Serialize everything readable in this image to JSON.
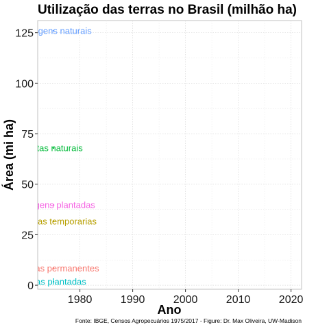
{
  "chart_data": {
    "type": "line",
    "title": "Utilização das terras no Brasil (milhão ha)",
    "xlabel": "Ano",
    "ylabel": "Área (mi ha)",
    "caption": "Fonte: IBGE, Censos Agropecuários 1975/2017 - Figure: Dr. Max Oliveira, UW-Madison",
    "xlim": [
      1972,
      2022
    ],
    "ylim": [
      -2,
      131
    ],
    "xticks": [
      1980,
      1990,
      2000,
      2010,
      2020
    ],
    "yticks": [
      0,
      25,
      50,
      75,
      100,
      125
    ],
    "grid": true,
    "legend": "none",
    "series": [
      {
        "label": "Pastagens naturais",
        "color": "#619cff",
        "x": [
          1975
        ],
        "y": [
          125.9
        ]
      },
      {
        "label": "Matas naturais",
        "color": "#00ba38",
        "x": [
          1975
        ],
        "y": [
          67.9
        ]
      },
      {
        "label": "Pastagens plantadas",
        "color": "#f564e3",
        "x": [
          1975
        ],
        "y": [
          39.7
        ]
      },
      {
        "label": "Lavouras temporarias",
        "color": "#b79f00",
        "x": [
          1975
        ],
        "y": [
          31.6
        ]
      },
      {
        "label": "Lavouras permanentes",
        "color": "#f8766d",
        "x": [
          1975
        ],
        "y": [
          8.4
        ]
      },
      {
        "label": "Matas plantadas",
        "color": "#00bfc4",
        "x": [
          1975
        ],
        "y": [
          1.7
        ]
      }
    ]
  }
}
